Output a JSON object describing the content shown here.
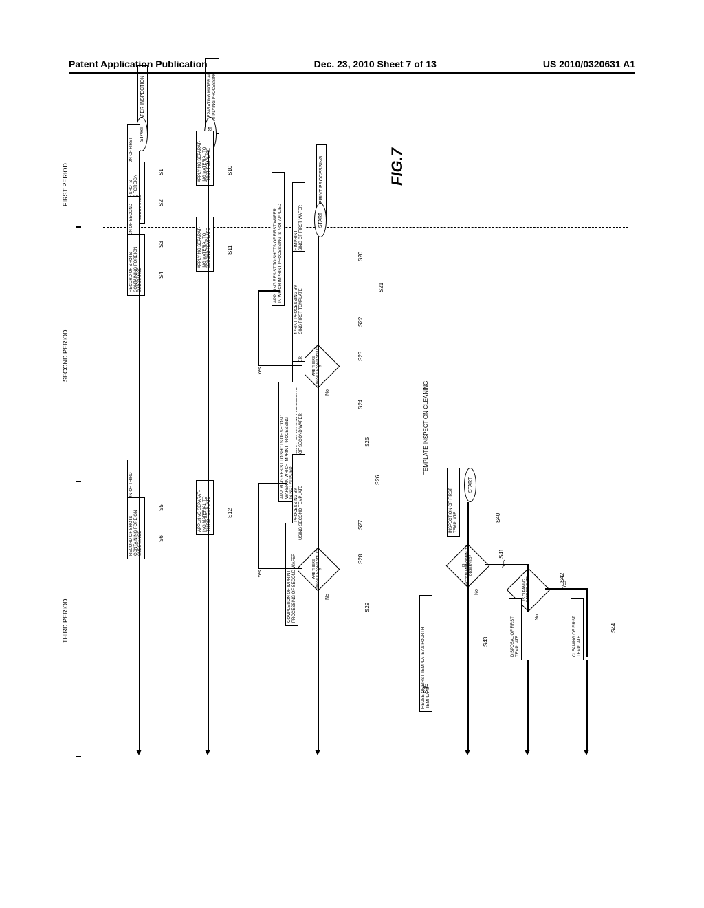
{
  "header": {
    "left": "Patent Application Publication",
    "center": "Dec. 23, 2010  Sheet 7 of 13",
    "right": "US 2010/0320631 A1"
  },
  "figure": {
    "title": "FIG.7"
  },
  "columns": {
    "wafer_inspection": "WAFER INSPECTION",
    "separating": "SEPARATING MATERIAL\nAPPLYING PROCESSING",
    "imprint": "IMPRINT PROCESSING",
    "template": "TEMPLATE INSPECTION·CLEANING"
  },
  "common": {
    "start": "START"
  },
  "periods": {
    "first": "FIRST PERIOD",
    "second": "SECOND PERIOD",
    "third": "THIRD PERIOD"
  },
  "steps": {
    "S1": {
      "id": "S1",
      "text": "INSPECTION OF FIRST\nWAFER"
    },
    "S2": {
      "id": "S2",
      "text": "RECORD OF SHOTS\nCONTAINING FOREIGN\nSUBSTANCE"
    },
    "S3": {
      "id": "S3",
      "text": "INSPECTION OF SECOND\nWAFER"
    },
    "S4": {
      "id": "S4",
      "text": "RECORD OF SHOTS\nCONTAINING FOREIGN\nSUBSTANCE"
    },
    "S5": {
      "id": "S5",
      "text": "INSPECTION OF THIRD\nWAFER"
    },
    "S6": {
      "id": "S6",
      "text": "RECORD OF SHOTS\nCONTAINING FOREIGN\nSUBSTANCE"
    },
    "S10": {
      "id": "S10",
      "text": "APPLYING SEPARAT-\nING MATERIAL TO\nFIRST TEMPLATE"
    },
    "S11": {
      "id": "S11",
      "text": "APPLYING SEPARAT-\nING MATERIAL TO\nSECOND TEMPLATE"
    },
    "S12": {
      "id": "S12",
      "text": "APPLYING SEPARAT-\nING MATERIAL TO\nTHIRD TEMPLATE"
    },
    "S20": {
      "id": "S20",
      "text": "START OF IMPRINT\nPROCESSING OF FIRST WAFER"
    },
    "S21": {
      "id": "S21",
      "text": "APPLYING RESIST TO SHOTS OF FIRST WAFER\nIN WHICH IMPRINT PROCESSING IS NOT APPLIED"
    },
    "S22": {
      "id": "S22",
      "text": "IMPRINT PROCESSING BY\nUSING FIRST TEMPLATE"
    },
    "S23": {
      "id": "S23",
      "text": "ARE THERE\nUNPROCESSED SHOTS\n?"
    },
    "S24": {
      "id": "S24",
      "text": "COMPLETION OF IMPRINT\nPROCESSING OF FIRST WAFER"
    },
    "S25": {
      "id": "S25",
      "text": "START OF IMPRINT PROCESSING\nOF SECOND WAFER"
    },
    "S26": {
      "id": "S26",
      "text": "APPLYING RESIST TO SHOTS OF SECOND\nWAFER IN WHICH IMPRINT PROCESSING\nIS NOT APPLIED"
    },
    "S27": {
      "id": "S27",
      "text": "IMPRINT PROCESSING BY\nUSING SECOND TEMPLATE"
    },
    "S28": {
      "id": "S28",
      "text": "ARE THERE\nUNPROCESSED SHOTS\n?"
    },
    "S29": {
      "id": "S29",
      "text": "COMPLETION OF IMPRINT\nPROCESSING OF SECOND WAFER"
    },
    "S40": {
      "id": "S40",
      "text": "INSPECTION OF FIRST\nTEMPLATE"
    },
    "S41": {
      "id": "S41",
      "text": "IS\nPATTERN ABNORMALITY\nOBSERVED?"
    },
    "S42": {
      "id": "S42",
      "text": "IS CLEANING\nCARRIED OUT?"
    },
    "S43": {
      "id": "S43",
      "text": "DISPOSAL OF FIRST\nTEMPLATE"
    },
    "S44": {
      "id": "S44",
      "text": "CLEANING OF FIRST\nTEMPLATE"
    },
    "S45": {
      "id": "S45",
      "text": "REUSE OF FIRST TEMPLATE AS FOURTH\nTEMPLATE"
    }
  },
  "yn": {
    "yes": "Yes",
    "no": "No"
  }
}
